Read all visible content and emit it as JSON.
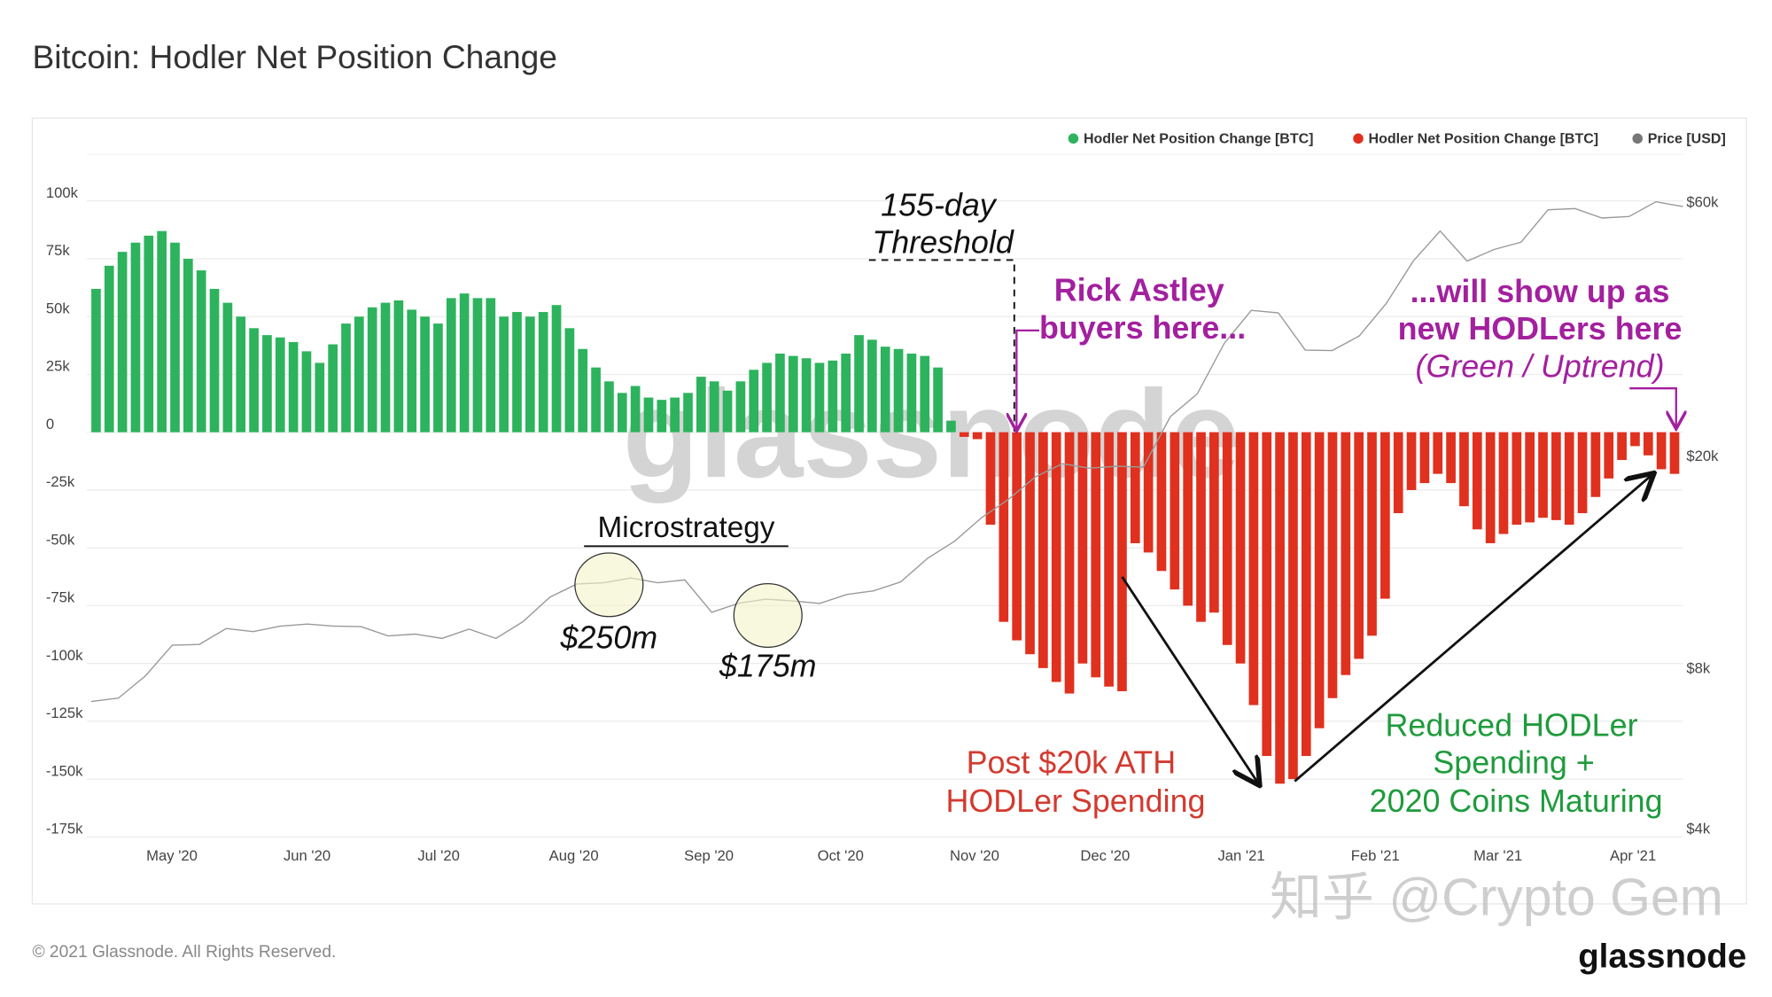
{
  "title": "Bitcoin: Hodler Net Position Change",
  "footer": "© 2021 Glassnode. All Rights Reserved.",
  "logo": "glassnode",
  "watermark": "glassnode",
  "zhihu_watermark": "知乎 @Crypto Gem",
  "colors": {
    "green": "#2db35d",
    "red": "#e0301e",
    "price": "#9a9a9a",
    "purple": "#a3209f",
    "anno_red": "#d33a2f",
    "anno_green": "#1e9b3c"
  },
  "annotations": {
    "threshold_1": "155-day",
    "threshold_2": "Threshold",
    "rick_1": "Rick Astley",
    "rick_2": "buyers here...",
    "will_1": "...will show up as",
    "will_2": "new HODLers here",
    "will_3": "(Green / Uptrend)",
    "micro": "Microstrategy",
    "m250": "$250m",
    "m175": "$175m",
    "post_1": "Post $20k ATH",
    "post_2": "HODLer Spending",
    "reduced_1": "Reduced HODLer",
    "reduced_2": "Spending +",
    "reduced_3": "2020 Coins Maturing"
  },
  "chart_data": {
    "type": "bar",
    "title": "Bitcoin: Hodler Net Position Change",
    "legend": [
      "Hodler Net Position Change [BTC]",
      "Hodler Net Position Change [BTC]",
      "Price [USD]"
    ],
    "legend_placement": "top-right",
    "x_ticks": [
      "May '20",
      "Jun '20",
      "Jul '20",
      "Aug '20",
      "Sep '20",
      "Oct '20",
      "Nov '20",
      "Dec '20",
      "Jan '21",
      "Feb '21",
      "Mar '21",
      "Apr '21"
    ],
    "y_ticks": [
      "100k",
      "75k",
      "50k",
      "25k",
      "0",
      "-25k",
      "-50k",
      "-75k",
      "-100k",
      "-125k",
      "-150k",
      "-175k"
    ],
    "y_right_ticks": [
      "$60k",
      "$20k",
      "$8k",
      "$4k"
    ],
    "ylim": [
      -175000,
      100000
    ],
    "y_right_scale": "log",
    "x_range": [
      "2020-04-13",
      "2021-04-12"
    ],
    "bar_interval_days": 3,
    "net_position_change_k_btc": [
      62,
      72,
      78,
      82,
      85,
      87,
      82,
      75,
      70,
      62,
      56,
      50,
      45,
      42,
      41,
      39,
      35,
      30,
      38,
      47,
      50,
      54,
      56,
      57,
      53,
      50,
      47,
      58,
      60,
      58,
      58,
      50,
      52,
      50,
      52,
      55,
      45,
      36,
      28,
      22,
      17,
      20,
      15,
      14,
      15,
      17,
      24,
      22,
      18,
      22,
      27,
      30,
      34,
      33,
      32,
      30,
      31,
      34,
      42,
      40,
      37,
      36,
      34,
      33,
      28,
      5,
      -2,
      -3,
      -40,
      -82,
      -90,
      -96,
      -102,
      -108,
      -113,
      -100,
      -106,
      -110,
      -112,
      -48,
      -52,
      -60,
      -68,
      -75,
      -82,
      -78,
      -92,
      -100,
      -118,
      -140,
      -152,
      -150,
      -140,
      -128,
      -115,
      -105,
      -98,
      -88,
      -72,
      -35,
      -25,
      -22,
      -18,
      -22,
      -32,
      -42,
      -48,
      -44,
      -40,
      -39,
      -37,
      -38,
      -40,
      -35,
      -28,
      -20,
      -12,
      -6,
      -10,
      -16,
      -18
    ],
    "price_usd_weekly_k": [
      6.9,
      7.0,
      7.7,
      8.8,
      8.7,
      9.6,
      9.2,
      9.7,
      9.5,
      9.7,
      9.4,
      9.3,
      9.1,
      9.2,
      9.3,
      9.2,
      9.6,
      11.0,
      11.3,
      11.7,
      11.6,
      11.7,
      11.5,
      10.3,
      10.4,
      10.9,
      10.5,
      10.7,
      10.8,
      11.3,
      11.4,
      13.0,
      13.6,
      15.5,
      16.3,
      18.5,
      19.0,
      19.2,
      18.8,
      19.3,
      23.3,
      26.5,
      32.0,
      38.0,
      36.5,
      32.0,
      31.0,
      34.0,
      38.0,
      47.0,
      52.0,
      47.0,
      48.0,
      51.0,
      57.0,
      59.0,
      55.0,
      57.0,
      59.0,
      59.5
    ]
  }
}
